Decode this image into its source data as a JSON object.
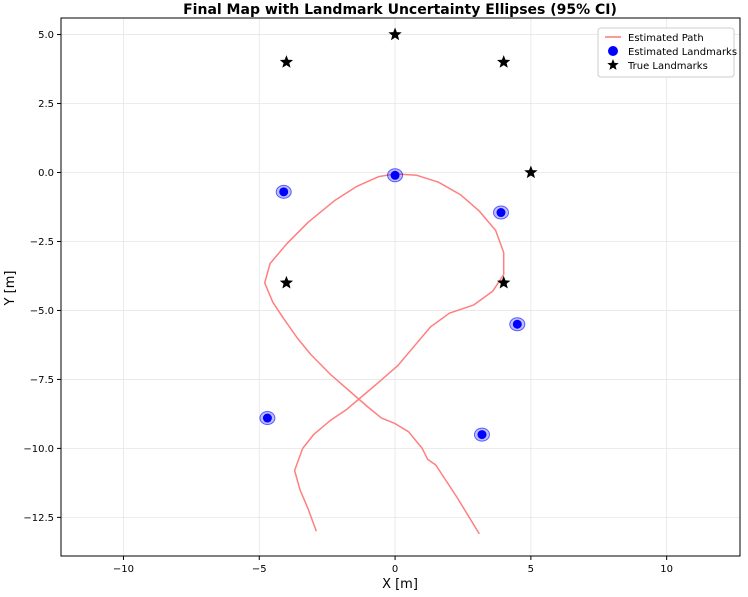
{
  "chart_data": {
    "type": "scatter",
    "title": "Final Map with Landmark Uncertainty Ellipses (95% CI)",
    "xlabel": "X [m]",
    "ylabel": "Y [m]",
    "xlim": [
      -12.3,
      12.7
    ],
    "ylim": [
      -13.9,
      5.6
    ],
    "xticks": [
      -10,
      -5,
      0,
      5,
      10
    ],
    "xtick_labels": [
      "−10",
      "−5",
      "0",
      "5",
      "10"
    ],
    "yticks": [
      5.0,
      2.5,
      0.0,
      -2.5,
      -5.0,
      -7.5,
      -10.0,
      -12.5
    ],
    "ytick_labels": [
      "5.0",
      "2.5",
      "0.0",
      "−2.5",
      "−5.0",
      "−7.5",
      "−10.0",
      "−12.5"
    ],
    "grid": true,
    "legend_position": "top-right",
    "series": [
      {
        "name": "Estimated Path",
        "kind": "line",
        "color": "#ff7f7f",
        "points": [
          [
            3.1,
            -13.1
          ],
          [
            2.3,
            -11.8
          ],
          [
            1.5,
            -10.6
          ],
          [
            1.2,
            -10.4
          ],
          [
            1.0,
            -10.0
          ],
          [
            0.5,
            -9.4
          ],
          [
            0.0,
            -9.1
          ],
          [
            -0.5,
            -8.9
          ],
          [
            -1.0,
            -8.5
          ],
          [
            -1.7,
            -7.9
          ],
          [
            -2.4,
            -7.3
          ],
          [
            -3.1,
            -6.6
          ],
          [
            -3.6,
            -6.0
          ],
          [
            -4.1,
            -5.3
          ],
          [
            -4.5,
            -4.7
          ],
          [
            -4.8,
            -4.0
          ],
          [
            -4.6,
            -3.3
          ],
          [
            -4.0,
            -2.6
          ],
          [
            -3.2,
            -1.8
          ],
          [
            -2.2,
            -1.0
          ],
          [
            -1.4,
            -0.5
          ],
          [
            -0.6,
            -0.15
          ],
          [
            0.0,
            -0.05
          ],
          [
            0.8,
            -0.1
          ],
          [
            1.6,
            -0.35
          ],
          [
            2.4,
            -0.8
          ],
          [
            3.1,
            -1.4
          ],
          [
            3.7,
            -2.1
          ],
          [
            4.0,
            -2.9
          ],
          [
            4.0,
            -3.7
          ],
          [
            3.6,
            -4.3
          ],
          [
            2.9,
            -4.8
          ],
          [
            2.0,
            -5.1
          ],
          [
            1.3,
            -5.6
          ],
          [
            0.7,
            -6.3
          ],
          [
            0.1,
            -7.0
          ],
          [
            -0.6,
            -7.6
          ],
          [
            -1.2,
            -8.1
          ],
          [
            -1.8,
            -8.6
          ],
          [
            -2.4,
            -9.0
          ],
          [
            -3.0,
            -9.5
          ],
          [
            -3.4,
            -10.0
          ],
          [
            -3.7,
            -10.8
          ],
          [
            -3.5,
            -11.5
          ],
          [
            -3.2,
            -12.2
          ],
          [
            -2.9,
            -13.0
          ]
        ]
      },
      {
        "name": "Estimated Landmarks",
        "kind": "scatter",
        "marker": "circle",
        "color": "#0000ff",
        "points": [
          [
            0.0,
            -0.1
          ],
          [
            -4.1,
            -0.7
          ],
          [
            3.9,
            -1.45
          ],
          [
            4.5,
            -5.5
          ],
          [
            -4.7,
            -8.9
          ],
          [
            3.2,
            -9.5
          ]
        ]
      },
      {
        "name": "True Landmarks",
        "kind": "scatter",
        "marker": "star",
        "color": "#000000",
        "points": [
          [
            -4,
            4
          ],
          [
            0,
            5
          ],
          [
            4,
            4
          ],
          [
            5,
            0
          ],
          [
            -4,
            -4
          ],
          [
            4,
            -4
          ]
        ]
      }
    ]
  }
}
